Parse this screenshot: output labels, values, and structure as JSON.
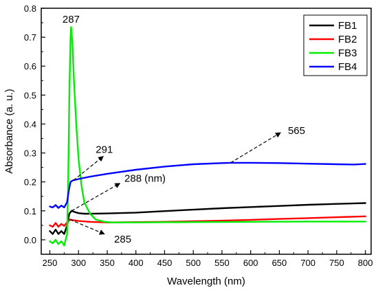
{
  "chart_data": {
    "type": "line",
    "xlabel": "Wavelength (nm)",
    "ylabel": "Absorbance (a. u.)",
    "xlim": [
      235,
      810
    ],
    "ylim": [
      -0.05,
      0.8
    ],
    "xticks": [
      250,
      300,
      350,
      400,
      450,
      500,
      550,
      600,
      650,
      700,
      750,
      800
    ],
    "yticks": [
      0.0,
      0.1,
      0.2,
      0.3,
      0.4,
      0.5,
      0.6,
      0.7,
      0.8
    ],
    "ytick_labels": [
      "0.0",
      "0.1",
      "0.2",
      "0.3",
      "0.4",
      "0.5",
      "0.6",
      "0.7",
      "0.8"
    ],
    "legend_position": "top-right",
    "series": [
      {
        "name": "FB1",
        "color": "#000000",
        "points": [
          [
            250,
            0.03
          ],
          [
            255,
            0.02
          ],
          [
            260,
            0.035
          ],
          [
            265,
            0.02
          ],
          [
            270,
            0.03
          ],
          [
            275,
            0.02
          ],
          [
            280,
            0.05
          ],
          [
            284,
            0.09
          ],
          [
            288,
            0.1
          ],
          [
            292,
            0.097
          ],
          [
            300,
            0.092
          ],
          [
            310,
            0.09
          ],
          [
            320,
            0.09
          ],
          [
            350,
            0.091
          ],
          [
            400,
            0.094
          ],
          [
            450,
            0.099
          ],
          [
            500,
            0.104
          ],
          [
            550,
            0.109
          ],
          [
            600,
            0.113
          ],
          [
            650,
            0.117
          ],
          [
            700,
            0.121
          ],
          [
            750,
            0.124
          ],
          [
            800,
            0.127
          ]
        ]
      },
      {
        "name": "FB2",
        "color": "#ff0000",
        "points": [
          [
            250,
            0.05
          ],
          [
            255,
            0.045
          ],
          [
            260,
            0.058
          ],
          [
            265,
            0.045
          ],
          [
            270,
            0.055
          ],
          [
            275,
            0.048
          ],
          [
            280,
            0.06
          ],
          [
            285,
            0.07
          ],
          [
            290,
            0.068
          ],
          [
            300,
            0.065
          ],
          [
            320,
            0.062
          ],
          [
            350,
            0.06
          ],
          [
            400,
            0.061
          ],
          [
            450,
            0.062
          ],
          [
            500,
            0.064
          ],
          [
            550,
            0.066
          ],
          [
            600,
            0.069
          ],
          [
            650,
            0.072
          ],
          [
            700,
            0.075
          ],
          [
            750,
            0.078
          ],
          [
            800,
            0.081
          ]
        ]
      },
      {
        "name": "FB3",
        "color": "#00ee00",
        "points": [
          [
            250,
            -0.005
          ],
          [
            255,
            -0.012
          ],
          [
            260,
            0.0
          ],
          [
            265,
            -0.015
          ],
          [
            270,
            -0.005
          ],
          [
            275,
            -0.02
          ],
          [
            280,
            0.02
          ],
          [
            282,
            0.2
          ],
          [
            284,
            0.5
          ],
          [
            286,
            0.7
          ],
          [
            287,
            0.735
          ],
          [
            289,
            0.69
          ],
          [
            292,
            0.55
          ],
          [
            296,
            0.4
          ],
          [
            300,
            0.28
          ],
          [
            305,
            0.19
          ],
          [
            310,
            0.13
          ],
          [
            320,
            0.09
          ],
          [
            330,
            0.07
          ],
          [
            345,
            0.062
          ],
          [
            360,
            0.06
          ],
          [
            400,
            0.06
          ],
          [
            500,
            0.061
          ],
          [
            600,
            0.062
          ],
          [
            700,
            0.063
          ],
          [
            800,
            0.063
          ]
        ]
      },
      {
        "name": "FB4",
        "color": "#0000ff",
        "points": [
          [
            250,
            0.115
          ],
          [
            255,
            0.112
          ],
          [
            260,
            0.12
          ],
          [
            265,
            0.11
          ],
          [
            270,
            0.118
          ],
          [
            275,
            0.112
          ],
          [
            280,
            0.13
          ],
          [
            283,
            0.17
          ],
          [
            286,
            0.2
          ],
          [
            290,
            0.205
          ],
          [
            300,
            0.21
          ],
          [
            320,
            0.218
          ],
          [
            350,
            0.228
          ],
          [
            400,
            0.242
          ],
          [
            450,
            0.253
          ],
          [
            500,
            0.261
          ],
          [
            550,
            0.265
          ],
          [
            565,
            0.266
          ],
          [
            600,
            0.266
          ],
          [
            650,
            0.265
          ],
          [
            700,
            0.263
          ],
          [
            750,
            0.261
          ],
          [
            780,
            0.26
          ],
          [
            800,
            0.262
          ]
        ]
      }
    ],
    "annotations": [
      {
        "text": "287",
        "x": 287,
        "y": 0.75
      },
      {
        "text": "291",
        "x": 330,
        "y": 0.3
      },
      {
        "text": "288 (nm)",
        "x": 380,
        "y": 0.2
      },
      {
        "text": "285",
        "x": 362,
        "y": -0.01
      },
      {
        "text": "565",
        "x": 665,
        "y": 0.365
      }
    ]
  }
}
